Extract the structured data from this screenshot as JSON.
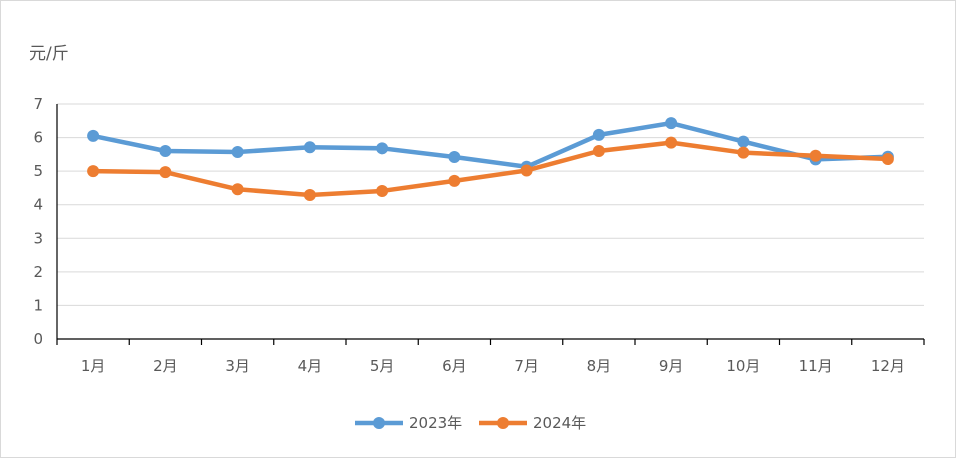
{
  "chart_data": {
    "type": "line",
    "ylabel": "元/斤",
    "ylim": [
      0,
      7
    ],
    "yticks": [
      "0",
      "1",
      "2",
      "3",
      "4",
      "5",
      "6",
      "7"
    ],
    "categories": [
      "1月",
      "2月",
      "3月",
      "4月",
      "5月",
      "6月",
      "7月",
      "8月",
      "9月",
      "10月",
      "11月",
      "12月"
    ],
    "grid": true,
    "legend_position": "bottom",
    "series": [
      {
        "name": "2023年",
        "color": "#5b9bd5",
        "values": [
          6.05,
          5.6,
          5.57,
          5.71,
          5.68,
          5.42,
          5.13,
          6.08,
          6.43,
          5.88,
          5.35,
          5.43
        ]
      },
      {
        "name": "2024年",
        "color": "#ed7d31",
        "values": [
          5.0,
          4.97,
          4.46,
          4.29,
          4.41,
          4.71,
          5.02,
          5.6,
          5.85,
          5.55,
          5.46,
          5.36
        ]
      }
    ]
  }
}
